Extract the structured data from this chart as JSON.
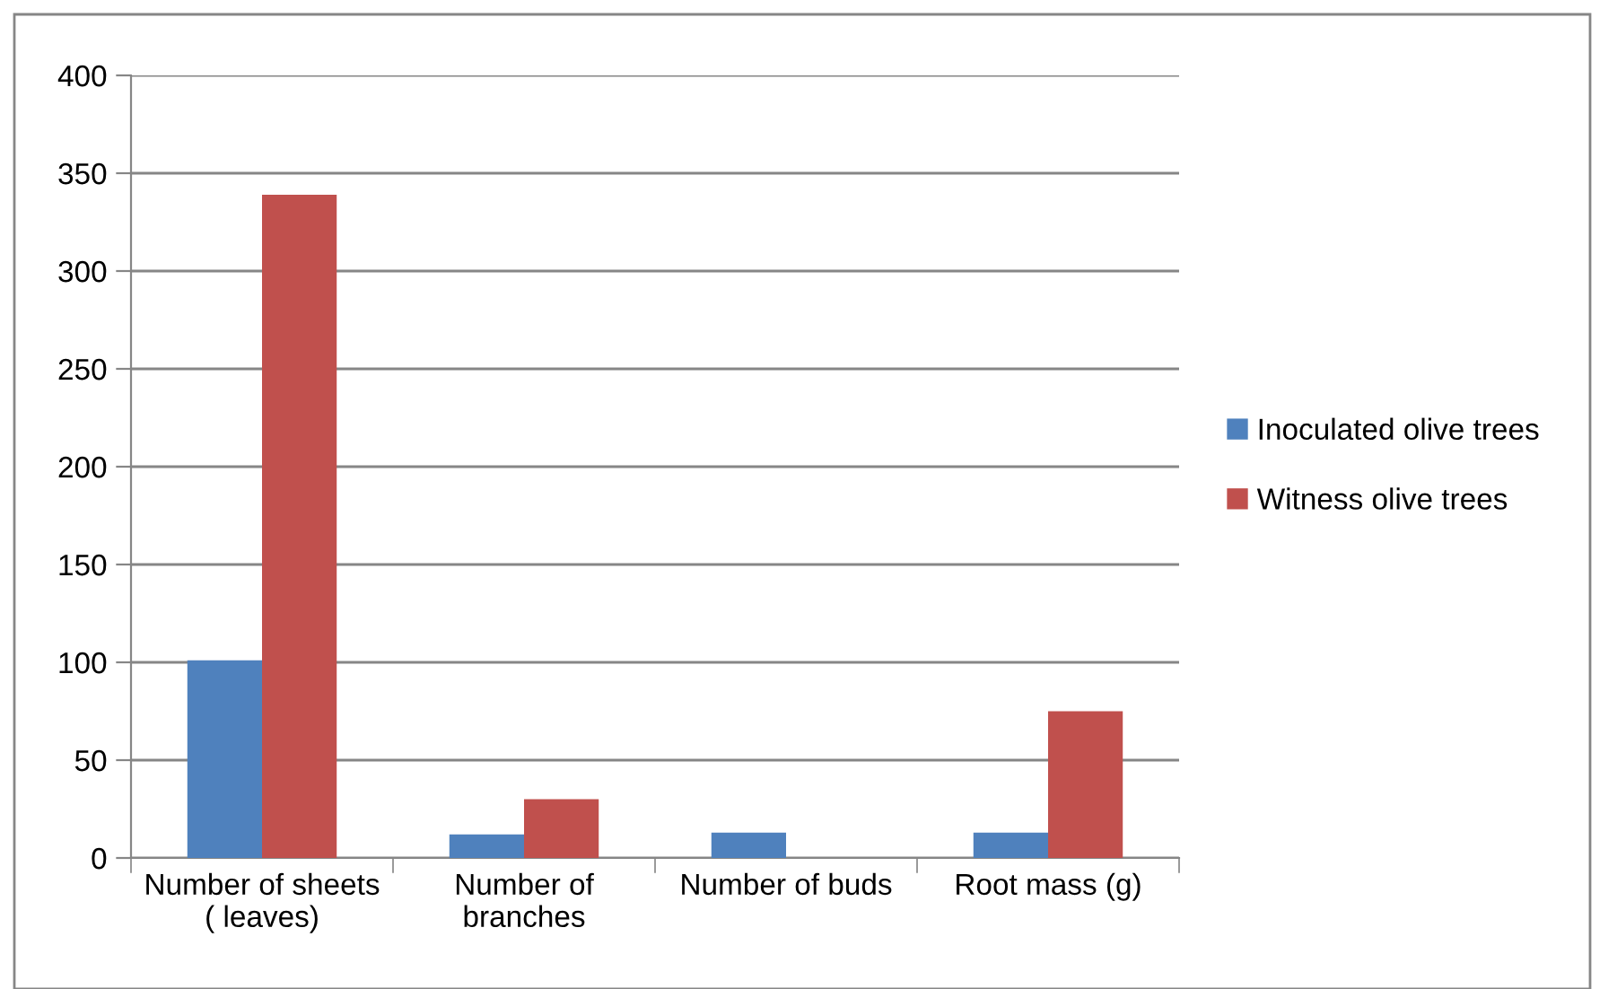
{
  "chart_data": {
    "type": "bar",
    "categories": [
      "Number of sheets ( leaves)",
      "Number of branches",
      "Number of buds",
      "Root mass (g)"
    ],
    "series": [
      {
        "name": "Inoculated olive trees",
        "color": "#4f81bd",
        "values": [
          101,
          12,
          13,
          13
        ]
      },
      {
        "name": "Witness olive trees",
        "color": "#c0504d",
        "values": [
          339,
          30,
          null,
          75
        ]
      }
    ],
    "ylim": [
      0,
      400
    ],
    "yticks": [
      0,
      50,
      100,
      150,
      200,
      250,
      300,
      350,
      400
    ],
    "grid": "y",
    "legend": "right"
  }
}
